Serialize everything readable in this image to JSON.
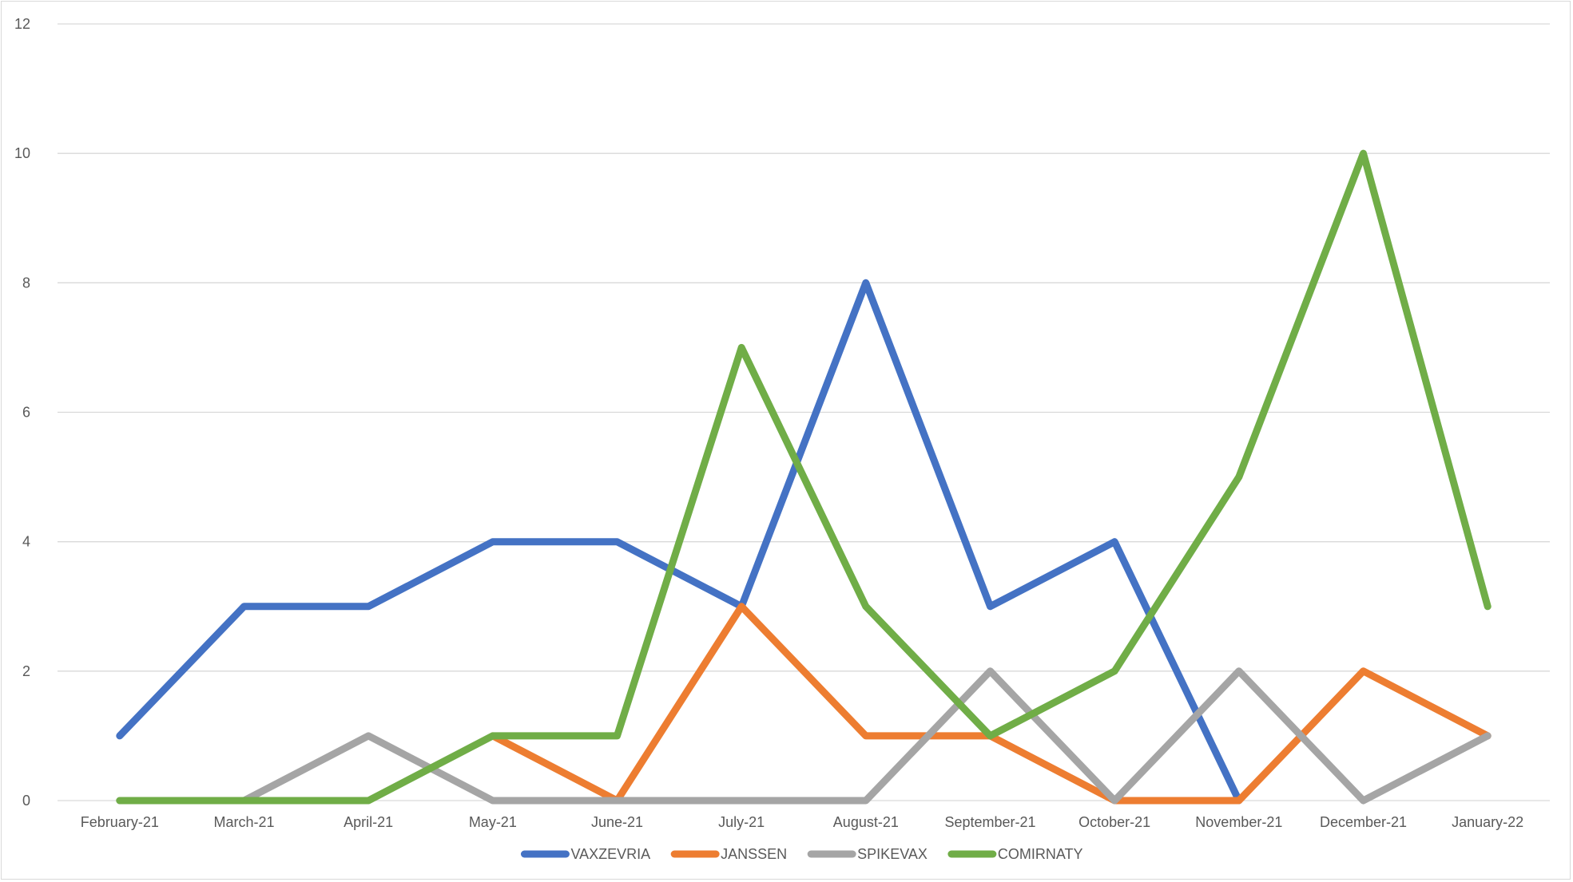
{
  "chart_data": {
    "type": "line",
    "title": "",
    "xlabel": "",
    "ylabel": "",
    "categories": [
      "February-21",
      "March-21",
      "April-21",
      "May-21",
      "June-21",
      "July-21",
      "August-21",
      "September-21",
      "October-21",
      "November-21",
      "December-21",
      "January-22"
    ],
    "ylim": [
      0,
      12
    ],
    "yticks": [
      0,
      2,
      4,
      6,
      8,
      10,
      12
    ],
    "grid": true,
    "legend_position": "bottom",
    "series": [
      {
        "name": "VAXZEVRIA",
        "color": "#4472C4",
        "values": [
          1,
          3,
          3,
          4,
          4,
          3,
          8,
          3,
          4,
          0,
          null,
          null
        ]
      },
      {
        "name": "JANSSEN",
        "color": "#ED7D31",
        "values": [
          null,
          null,
          null,
          1,
          0,
          3,
          1,
          1,
          0,
          0,
          2,
          1
        ]
      },
      {
        "name": "SPIKEVAX",
        "color": "#A5A5A5",
        "values": [
          0,
          0,
          1,
          0,
          0,
          0,
          0,
          2,
          0,
          2,
          0,
          1
        ]
      },
      {
        "name": "COMIRNATY",
        "color": "#70AD47",
        "values": [
          0,
          0,
          0,
          1,
          1,
          7,
          3,
          1,
          2,
          5,
          10,
          3
        ]
      }
    ]
  }
}
